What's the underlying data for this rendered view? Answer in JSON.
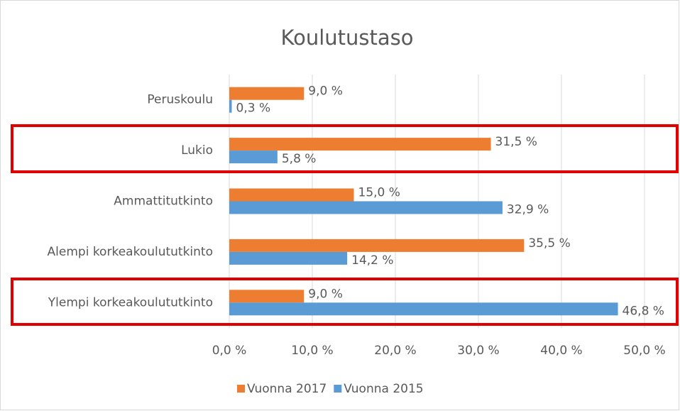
{
  "chart_data": {
    "type": "bar",
    "orientation": "horizontal",
    "title": "Koulutustaso",
    "categories": [
      "Peruskoulu",
      "Lukio",
      "Ammattitutkinto",
      "Alempi korkeakoulututkinto",
      "Ylempi korkeakoulututkinto"
    ],
    "series": [
      {
        "name": "Vuonna 2017",
        "color": "#ed7d31",
        "values": [
          9.0,
          31.5,
          15.0,
          35.5,
          9.0
        ],
        "value_labels": [
          "9,0 %",
          "31,5 %",
          "15,0 %",
          "35,5 %",
          "9,0 %"
        ]
      },
      {
        "name": "Vuonna 2015",
        "color": "#5b9bd5",
        "values": [
          0.3,
          5.8,
          32.9,
          14.2,
          46.8
        ],
        "value_labels": [
          "0,3 %",
          "5,8 %",
          "32,9 %",
          "14,2 %",
          "46,8 %"
        ]
      }
    ],
    "xlim": [
      0,
      50
    ],
    "xticks": [
      {
        "value": 0,
        "label": "0,0 %"
      },
      {
        "value": 10,
        "label": "10,0 %"
      },
      {
        "value": 20,
        "label": "20,0 %"
      },
      {
        "value": 30,
        "label": "30,0 %"
      },
      {
        "value": 40,
        "label": "40,0 %"
      },
      {
        "value": 50,
        "label": "50,0 %"
      }
    ],
    "grid": true,
    "legend": "bottom"
  }
}
